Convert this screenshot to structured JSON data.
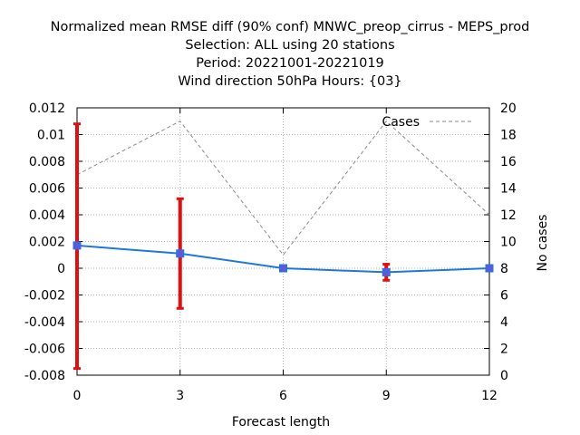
{
  "chart_data": {
    "type": "line",
    "title_lines": [
      "Normalized mean RMSE diff (90% conf) MNWC_preop_cirrus - MEPS_prod",
      "Selection: ALL using    20 stations",
      "Period: 20221001-20221019",
      "Wind direction 50hPa   Hours: {03}"
    ],
    "xlabel": "Forecast length",
    "ylabel": "",
    "y2label": "No cases",
    "x": [
      0,
      3,
      6,
      9,
      12
    ],
    "xlim": [
      0,
      12
    ],
    "ylim": [
      -0.008,
      0.012
    ],
    "y2lim": [
      0,
      20
    ],
    "xticks": [
      "0",
      "3",
      "6",
      "9",
      "12"
    ],
    "yticks": [
      "-0.008",
      "-0.006",
      "-0.004",
      "-0.002",
      "0",
      "0.002",
      "0.004",
      "0.006",
      "0.008",
      "0.01",
      "0.012"
    ],
    "y2ticks": [
      "0",
      "2",
      "4",
      "6",
      "8",
      "10",
      "12",
      "14",
      "16",
      "18",
      "20"
    ],
    "grid": true,
    "legend": {
      "position": "top-right",
      "entries": [
        "Cases"
      ]
    },
    "series": [
      {
        "name": "",
        "values": [
          0.0017,
          0.0011,
          0.0,
          -0.0003,
          0.0
        ],
        "error_low": [
          -0.0075,
          -0.003,
          -0.0001,
          -0.0009,
          -0.0001
        ],
        "error_high": [
          0.0108,
          0.0052,
          0.0001,
          0.0003,
          0.0001
        ],
        "color": "#1e78dc",
        "marker_color": "#5a5adc",
        "error_color": "#e01010"
      },
      {
        "name": "Cases",
        "axis": "y2",
        "values": [
          15,
          19,
          9,
          19,
          12
        ],
        "color": "#888888",
        "dashed": true
      }
    ]
  }
}
